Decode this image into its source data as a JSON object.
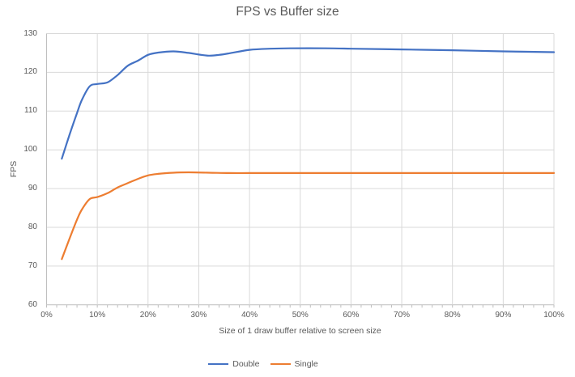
{
  "chart_data": {
    "type": "line",
    "title": "FPS vs Buffer size",
    "xlabel": "Size of 1 draw buffer relative to screen size",
    "ylabel": "FPS",
    "xlim": [
      0,
      100
    ],
    "ylim": [
      60,
      130
    ],
    "grid": true,
    "smooth_lines": true,
    "legend_position": "bottom",
    "x_minor_tick_step": 2,
    "colors": {
      "grid": "#D9D9D9",
      "axis": "#BFBFBF",
      "tick": "#BFBFBF",
      "text": "#595959",
      "background": "#FFFFFF"
    },
    "yticks": [
      {
        "v": 60,
        "label": "60"
      },
      {
        "v": 70,
        "label": "70"
      },
      {
        "v": 80,
        "label": "80"
      },
      {
        "v": 90,
        "label": "90"
      },
      {
        "v": 100,
        "label": "100"
      },
      {
        "v": 110,
        "label": "110"
      },
      {
        "v": 120,
        "label": "120"
      },
      {
        "v": 130,
        "label": "130"
      }
    ],
    "xticks": [
      {
        "v": 0,
        "label": "0%"
      },
      {
        "v": 10,
        "label": "10%"
      },
      {
        "v": 20,
        "label": "20%"
      },
      {
        "v": 30,
        "label": "30%"
      },
      {
        "v": 40,
        "label": "40%"
      },
      {
        "v": 50,
        "label": "50%"
      },
      {
        "v": 60,
        "label": "60%"
      },
      {
        "v": 70,
        "label": "70%"
      },
      {
        "v": 80,
        "label": "80%"
      },
      {
        "v": 90,
        "label": "90%"
      },
      {
        "v": 100,
        "label": "100%"
      }
    ],
    "series": [
      {
        "name": "Double",
        "color": "#4472C4",
        "points": [
          [
            3,
            97.7
          ],
          [
            4.5,
            103.8
          ],
          [
            6,
            109.5
          ],
          [
            7,
            113
          ],
          [
            8.5,
            116.4
          ],
          [
            10,
            117
          ],
          [
            12,
            117.4
          ],
          [
            14,
            119.3
          ],
          [
            16,
            121.7
          ],
          [
            18,
            123
          ],
          [
            20,
            124.5
          ],
          [
            22,
            125.1
          ],
          [
            25,
            125.4
          ],
          [
            28,
            125
          ],
          [
            30,
            124.6
          ],
          [
            32,
            124.3
          ],
          [
            34,
            124.5
          ],
          [
            36,
            124.9
          ],
          [
            40,
            125.8
          ],
          [
            44,
            126.1
          ],
          [
            48,
            126.2
          ],
          [
            55,
            126.2
          ],
          [
            60,
            126.1
          ],
          [
            70,
            125.9
          ],
          [
            80,
            125.7
          ],
          [
            90,
            125.4
          ],
          [
            100,
            125.2
          ]
        ]
      },
      {
        "name": "Single",
        "color": "#ED7D31",
        "points": [
          [
            3,
            71.8
          ],
          [
            4.5,
            77
          ],
          [
            6,
            82
          ],
          [
            7,
            84.7
          ],
          [
            8.5,
            87.3
          ],
          [
            10,
            87.8
          ],
          [
            12,
            88.8
          ],
          [
            14,
            90.3
          ],
          [
            16,
            91.4
          ],
          [
            18,
            92.5
          ],
          [
            20,
            93.4
          ],
          [
            22,
            93.8
          ],
          [
            25,
            94.1
          ],
          [
            28,
            94.2
          ],
          [
            32,
            94.1
          ],
          [
            36,
            94
          ],
          [
            40,
            94
          ],
          [
            45,
            94
          ],
          [
            50,
            94
          ],
          [
            55,
            94
          ],
          [
            60,
            94
          ],
          [
            70,
            94
          ],
          [
            80,
            94
          ],
          [
            90,
            94
          ],
          [
            100,
            94
          ]
        ]
      }
    ]
  }
}
